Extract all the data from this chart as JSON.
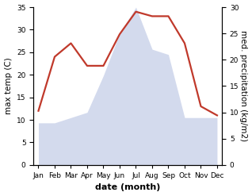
{
  "months": [
    "Jan",
    "Feb",
    "Mar",
    "Apr",
    "May",
    "Jun",
    "Jul",
    "Aug",
    "Sep",
    "Oct",
    "Nov",
    "Dec"
  ],
  "temperature": [
    12,
    24,
    27,
    22,
    22,
    29,
    34,
    33,
    33,
    27,
    13,
    11
  ],
  "precipitation": [
    8,
    8,
    9,
    10,
    17,
    25,
    30,
    22,
    21,
    9,
    9,
    9
  ],
  "temp_color": "#c0392b",
  "precip_fill_color": "#c5cee8",
  "left_ylim": [
    0,
    35
  ],
  "right_ylim": [
    0,
    30
  ],
  "left_ylabel": "max temp (C)",
  "right_ylabel": "med. precipitation (kg/m2)",
  "xlabel": "date (month)",
  "figsize": [
    3.18,
    2.47
  ],
  "dpi": 100,
  "temp_linewidth": 1.6,
  "xlabel_fontsize": 8,
  "ylabel_fontsize": 7.5,
  "tick_fontsize": 6.5
}
